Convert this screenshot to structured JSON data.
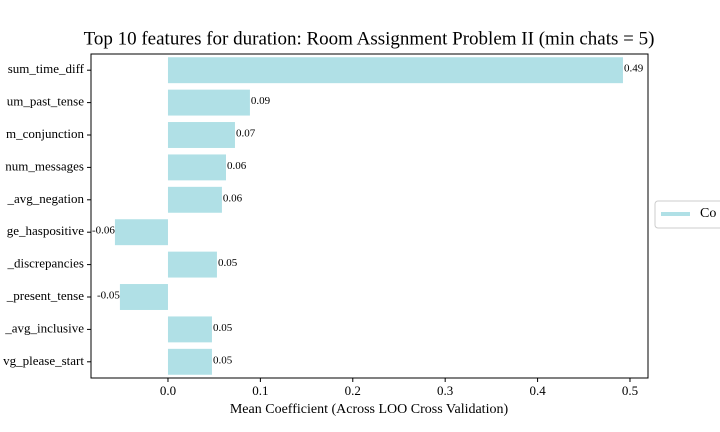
{
  "chart_data": {
    "type": "barh",
    "title": "Top 10 features for duration: Room Assignment Problem II (min chats = 5)",
    "xlabel": "Mean Coefficient (Across LOO Cross Validation)",
    "categories": [
      "sum_time_diff",
      "um_past_tense",
      "m_conjunction",
      "num_messages",
      "_avg_negation",
      "ge_haspositive",
      "_discrepancies",
      "_present_tense",
      "_avg_inclusive",
      "vg_please_start"
    ],
    "series": [
      {
        "name": "Co",
        "color": "#b0e0e6",
        "values": [
          0.4924,
          0.0887,
          0.0725,
          0.0628,
          0.0584,
          -0.0574,
          0.053,
          -0.052,
          0.0476,
          0.0476
        ],
        "value_labels": [
          "0.49",
          "0.09",
          "0.07",
          "0.06",
          "0.06",
          "-0.06",
          "0.05",
          "-0.05",
          "0.05",
          "0.05"
        ]
      }
    ],
    "xlim": [
      -0.0833,
      0.5195
    ],
    "xticks": [
      {
        "value": 0,
        "label": "0.0"
      },
      0.1,
      0.2,
      0.3,
      0.4,
      0.5
    ],
    "legend": "right"
  }
}
